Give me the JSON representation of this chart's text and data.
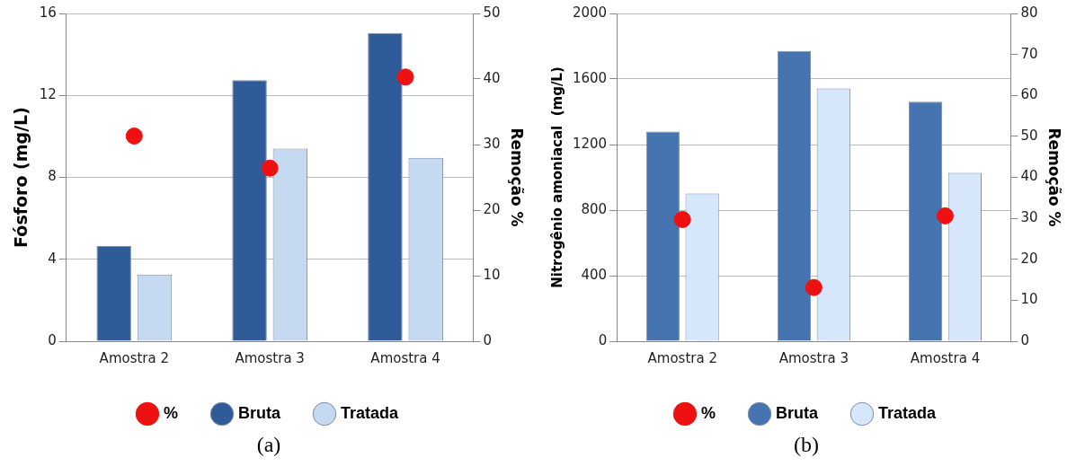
{
  "chart_data": [
    {
      "type": "bar",
      "categories": [
        "Amostra 2",
        "Amostra 3",
        "Amostra 4"
      ],
      "ylabel": "Fósforo (mg/L)",
      "y2label": "Remoção %",
      "series": [
        {
          "name": "Bruta",
          "color": "#2f5c98",
          "values": [
            4.65,
            12.75,
            15.05
          ]
        },
        {
          "name": "Tratada",
          "color": "#c5d9f0",
          "values": [
            3.25,
            9.4,
            8.95
          ]
        },
        {
          "name": "%",
          "type": "scatter",
          "axis": "y2",
          "color": "#ee1111",
          "x": [
            "Amostra 2",
            "Amostra 3",
            "Amostra 4"
          ],
          "values": [
            31.3,
            26.4,
            40.3
          ]
        }
      ],
      "ylim": [
        0,
        16
      ],
      "yticks": [
        0,
        4,
        8,
        12,
        16
      ],
      "y2lim": [
        0,
        50
      ],
      "y2ticks": [
        0,
        10,
        20,
        30,
        40,
        50
      ],
      "grid": "y",
      "legend": "bottom",
      "marker": "circle",
      "annotations": [
        "(a)"
      ]
    },
    {
      "type": "bar",
      "categories": [
        "Amostra 2",
        "Amostra 3",
        "Amostra 4"
      ],
      "ylabel": "Nitrogênio amoniacal  (mg/L)",
      "y2label": "Remoção %",
      "series": [
        {
          "name": "Bruta",
          "color": "#4574b0",
          "values": [
            1279,
            1771,
            1462
          ]
        },
        {
          "name": "Tratada",
          "color": "#d6e7fb",
          "values": [
            902,
            1542,
            1027
          ]
        },
        {
          "name": "%",
          "type": "scatter",
          "axis": "y2",
          "color": "#ee1111",
          "x": [
            "Amostra 2",
            "Amostra 3",
            "Amostra 4"
          ],
          "values": [
            29.7,
            13.1,
            30.6
          ]
        }
      ],
      "ylim": [
        0,
        2000
      ],
      "yticks": [
        0,
        400,
        800,
        1200,
        1600,
        2000
      ],
      "y2lim": [
        0,
        80
      ],
      "y2ticks": [
        0,
        10,
        20,
        30,
        40,
        50,
        60,
        70,
        80
      ],
      "grid": "y",
      "legend": "bottom",
      "marker": "circle",
      "annotations": [
        "(b)"
      ]
    }
  ]
}
